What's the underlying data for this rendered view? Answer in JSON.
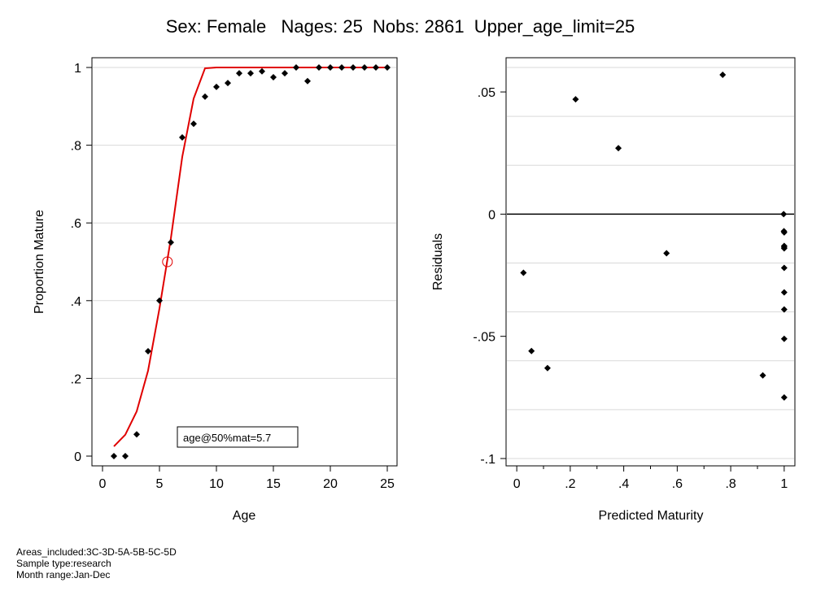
{
  "title": "Sex: Female   Nages: 25  Nobs: 2861  Upper_age_limit=25",
  "notes": [
    "Areas_included:3C-3D-5A-5B-5C-5D",
    "Sample type:research",
    "Month range:Jan-Dec"
  ],
  "chart_data": [
    {
      "type": "scatter",
      "xlabel": "Age",
      "ylabel": "Proportion Mature",
      "xlim": [
        0,
        25
      ],
      "ylim": [
        0,
        1
      ],
      "xticks": [
        0,
        5,
        10,
        15,
        20,
        25
      ],
      "xtick_labels": [
        "0",
        "5",
        "10",
        "15",
        "20",
        "25"
      ],
      "yticks": [
        0,
        0.2,
        0.4,
        0.6,
        0.8,
        1
      ],
      "ytick_labels": [
        "0",
        ".2",
        ".4",
        ".6",
        ".8",
        "1"
      ],
      "grid": "horizontal",
      "observed": {
        "x": [
          1,
          2,
          3,
          4,
          5,
          6,
          7,
          8,
          9,
          10,
          11,
          12,
          13,
          14,
          15,
          16,
          17,
          18,
          19,
          20,
          21,
          22,
          23,
          24,
          25
        ],
        "y": [
          0,
          0,
          0.056,
          0.27,
          0.4,
          0.55,
          0.82,
          0.855,
          0.925,
          0.95,
          0.96,
          0.985,
          0.985,
          0.99,
          0.975,
          0.985,
          1.0,
          0.965,
          1.0,
          1.0,
          1.0,
          1.0,
          1.0,
          1.0,
          1.0
        ]
      },
      "fitted": {
        "color": "#e00000",
        "x": [
          1,
          2,
          3,
          4,
          5,
          6,
          7,
          8,
          9,
          10,
          11,
          12,
          13,
          14,
          15,
          16,
          17,
          18,
          19,
          20,
          21,
          22,
          23,
          24,
          25
        ],
        "y": [
          0.025,
          0.055,
          0.115,
          0.22,
          0.38,
          0.56,
          0.77,
          0.92,
          0.998,
          1,
          1,
          1,
          1,
          1,
          1,
          1,
          1,
          1,
          1,
          1,
          1,
          1,
          1,
          1,
          1
        ]
      },
      "a50_marker": {
        "x": 5.7,
        "y": 0.5,
        "color": "#e00000"
      },
      "legend_text": "age@50%mat=5.7",
      "legend_position": "bottom-center"
    },
    {
      "type": "scatter",
      "xlabel": "Predicted Maturity",
      "ylabel": "Residuals",
      "xlim": [
        -0.04,
        1.04
      ],
      "ylim": [
        -0.103,
        0.064
      ],
      "xticks": [
        0,
        0.2,
        0.4,
        0.6,
        0.8,
        1
      ],
      "xtick_labels": [
        "0",
        ".2",
        ".4",
        ".6",
        ".8",
        "1"
      ],
      "minor_xticks": [
        0.1,
        0.3,
        0.5,
        0.7,
        0.9
      ],
      "yticks": [
        -0.1,
        -0.05,
        0,
        0.05
      ],
      "ytick_labels": [
        "-.1",
        "-.05",
        "0",
        ".05"
      ],
      "ygrid": [
        -0.1,
        -0.08,
        -0.06,
        -0.04,
        -0.02,
        0.02,
        0.04,
        0.06
      ],
      "zero_line": 0,
      "points": {
        "x": [
          0.025,
          0.055,
          0.115,
          0.22,
          0.38,
          0.56,
          0.77,
          0.92,
          0.998,
          0.999,
          1,
          1,
          1,
          1,
          1,
          1,
          1,
          1,
          1
        ],
        "y": [
          -0.024,
          -0.056,
          -0.063,
          0.047,
          0.027,
          -0.016,
          0.057,
          -0.066,
          0.0,
          -0.007,
          -0.013,
          -0.014,
          -0.022,
          -0.032,
          -0.039,
          -0.051,
          -0.075,
          -0.0135,
          -0.0075
        ]
      }
    }
  ]
}
